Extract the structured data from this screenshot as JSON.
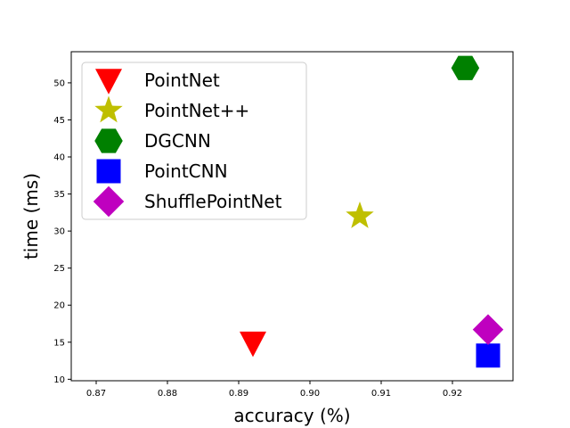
{
  "chart_data": {
    "type": "scatter",
    "title": "",
    "xlabel": "accuracy (%)",
    "ylabel": "time (ms)",
    "xlim": [
      0.8665,
      0.9285
    ],
    "ylim": [
      9.8,
      54.2
    ],
    "xticks": [
      0.87,
      0.88,
      0.89,
      0.9,
      0.91,
      0.92
    ],
    "xtick_labels": [
      "0.87",
      "0.88",
      "0.89",
      "0.90",
      "0.91",
      "0.92"
    ],
    "yticks": [
      10,
      15,
      20,
      25,
      30,
      35,
      40,
      45,
      50
    ],
    "ytick_labels": [
      "10",
      "15",
      "20",
      "25",
      "30",
      "35",
      "40",
      "45",
      "50"
    ],
    "grid": false,
    "legend_position": "top-left",
    "series": [
      {
        "name": "PointNet",
        "marker": "triangle-down",
        "color": "#ff0000",
        "points": [
          [
            0.892,
            14.9
          ]
        ]
      },
      {
        "name": "PointNet++",
        "marker": "star",
        "color": "#bfbf00",
        "points": [
          [
            0.907,
            32.0
          ]
        ]
      },
      {
        "name": "DGCNN",
        "marker": "hexagon",
        "color": "#008000",
        "points": [
          [
            0.9218,
            52.0
          ]
        ]
      },
      {
        "name": "PointCNN",
        "marker": "square",
        "color": "#0000ff",
        "points": [
          [
            0.925,
            13.2
          ]
        ]
      },
      {
        "name": "ShufflePointNet",
        "marker": "diamond",
        "color": "#bf00bf",
        "points": [
          [
            0.925,
            16.7
          ]
        ]
      }
    ]
  }
}
